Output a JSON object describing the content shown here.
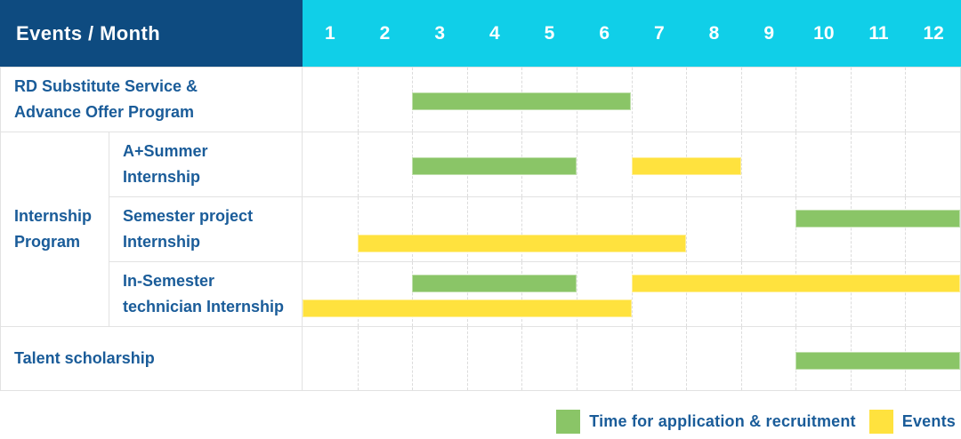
{
  "header": {
    "title": "Events / Month",
    "months": [
      "1",
      "2",
      "3",
      "4",
      "5",
      "6",
      "7",
      "8",
      "9",
      "10",
      "11",
      "12"
    ]
  },
  "colors": {
    "header_bg": "#0E4B80",
    "month_header_bg": "#10CFE8",
    "green": "#8AC567",
    "yellow": "#FFE23E",
    "label_text": "#1A5C99",
    "grid_line": "#E2E2E2",
    "grid_dash": "#DCDCDC"
  },
  "body": {
    "group_label": "Internship\nProgram",
    "rows": [
      {
        "id": "rd-substitute-service",
        "label": "RD Substitute Service &\nAdvance Offer Program",
        "in_group": false,
        "bars": [
          {
            "color": "green",
            "lane": "single",
            "start_month": 3,
            "end_month": 6
          }
        ]
      },
      {
        "id": "a-plus-summer-internship",
        "label": "A+Summer\nInternship",
        "in_group": true,
        "bars": [
          {
            "color": "green",
            "lane": "single",
            "start_month": 3,
            "end_month": 5
          },
          {
            "color": "yellow",
            "lane": "single",
            "start_month": 7,
            "end_month": 8
          }
        ]
      },
      {
        "id": "semester-project-internship",
        "label": "Semester project\nInternship",
        "in_group": true,
        "bars": [
          {
            "color": "green",
            "lane": "top",
            "start_month": 10,
            "end_month": 12
          },
          {
            "color": "yellow",
            "lane": "bottom",
            "start_month": 2,
            "end_month": 7
          }
        ]
      },
      {
        "id": "in-semester-technician-internship",
        "label": "In-Semester\ntechnician Internship",
        "in_group": true,
        "bars": [
          {
            "color": "green",
            "lane": "top",
            "start_month": 3,
            "end_month": 5
          },
          {
            "color": "yellow",
            "lane": "top",
            "start_month": 7,
            "end_month": 12
          },
          {
            "color": "yellow",
            "lane": "bottom",
            "start_month": 1,
            "end_month": 6
          }
        ]
      },
      {
        "id": "talent-scholarship",
        "label": "Talent scholarship",
        "in_group": false,
        "bars": [
          {
            "color": "green",
            "lane": "single",
            "start_month": 10,
            "end_month": 12
          }
        ]
      }
    ]
  },
  "legend": {
    "items": [
      {
        "color": "green",
        "label": "Time for application & recruitment"
      },
      {
        "color": "yellow",
        "label": "Events"
      }
    ]
  },
  "chart_data": {
    "type": "bar",
    "subtype": "gantt",
    "title": "Events / Month",
    "xlabel": "Month",
    "x_ticks": [
      1,
      2,
      3,
      4,
      5,
      6,
      7,
      8,
      9,
      10,
      11,
      12
    ],
    "x_range": [
      1,
      12
    ],
    "categories": [
      "RD Substitute Service & Advance Offer Program",
      "A+Summer Internship",
      "Semester project Internship",
      "In-Semester technician Internship",
      "Talent scholarship"
    ],
    "series": [
      {
        "name": "Time for application & recruitment",
        "color": "#8AC567",
        "segments": [
          {
            "row": "RD Substitute Service & Advance Offer Program",
            "months": [
              3,
              6
            ]
          },
          {
            "row": "A+Summer Internship",
            "months": [
              3,
              5
            ]
          },
          {
            "row": "Semester project Internship",
            "months": [
              10,
              12
            ]
          },
          {
            "row": "In-Semester technician Internship",
            "months": [
              3,
              5
            ]
          },
          {
            "row": "Talent scholarship",
            "months": [
              10,
              12
            ]
          }
        ]
      },
      {
        "name": "Events",
        "color": "#FFE23E",
        "segments": [
          {
            "row": "A+Summer Internship",
            "months": [
              7,
              8
            ]
          },
          {
            "row": "Semester project Internship",
            "months": [
              2,
              7
            ]
          },
          {
            "row": "In-Semester technician Internship",
            "months": [
              7,
              12
            ]
          },
          {
            "row": "In-Semester technician Internship",
            "months": [
              1,
              6
            ]
          }
        ]
      }
    ],
    "legend_position": "bottom-right",
    "grid": "vertical-dashed"
  }
}
